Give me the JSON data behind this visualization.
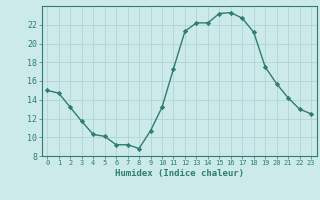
{
  "x": [
    0,
    1,
    2,
    3,
    4,
    5,
    6,
    7,
    8,
    9,
    10,
    11,
    12,
    13,
    14,
    15,
    16,
    17,
    18,
    19,
    20,
    21,
    22,
    23
  ],
  "y": [
    15.0,
    14.7,
    13.2,
    11.7,
    10.3,
    10.1,
    9.2,
    9.2,
    8.8,
    10.7,
    13.2,
    17.3,
    21.3,
    22.2,
    22.2,
    23.2,
    23.3,
    22.7,
    21.2,
    17.5,
    15.7,
    14.2,
    13.0,
    12.5
  ],
  "line_color": "#2e7d6e",
  "marker": "D",
  "markersize": 2.2,
  "linewidth": 1.0,
  "background_color": "#cceaea",
  "grid_color": "#aacfcf",
  "xlabel": "Humidex (Indice chaleur)",
  "ylim": [
    8,
    24
  ],
  "xlim": [
    -0.5,
    23.5
  ],
  "yticks": [
    8,
    10,
    12,
    14,
    16,
    18,
    20,
    22
  ],
  "xticks": [
    0,
    1,
    2,
    3,
    4,
    5,
    6,
    7,
    8,
    9,
    10,
    11,
    12,
    13,
    14,
    15,
    16,
    17,
    18,
    19,
    20,
    21,
    22,
    23
  ],
  "tick_color": "#2e7d6e",
  "label_color": "#2e7d6e",
  "axis_color": "#2e7d6e",
  "xlabel_fontsize": 6.5,
  "xtick_fontsize": 5.0,
  "ytick_fontsize": 6.0
}
